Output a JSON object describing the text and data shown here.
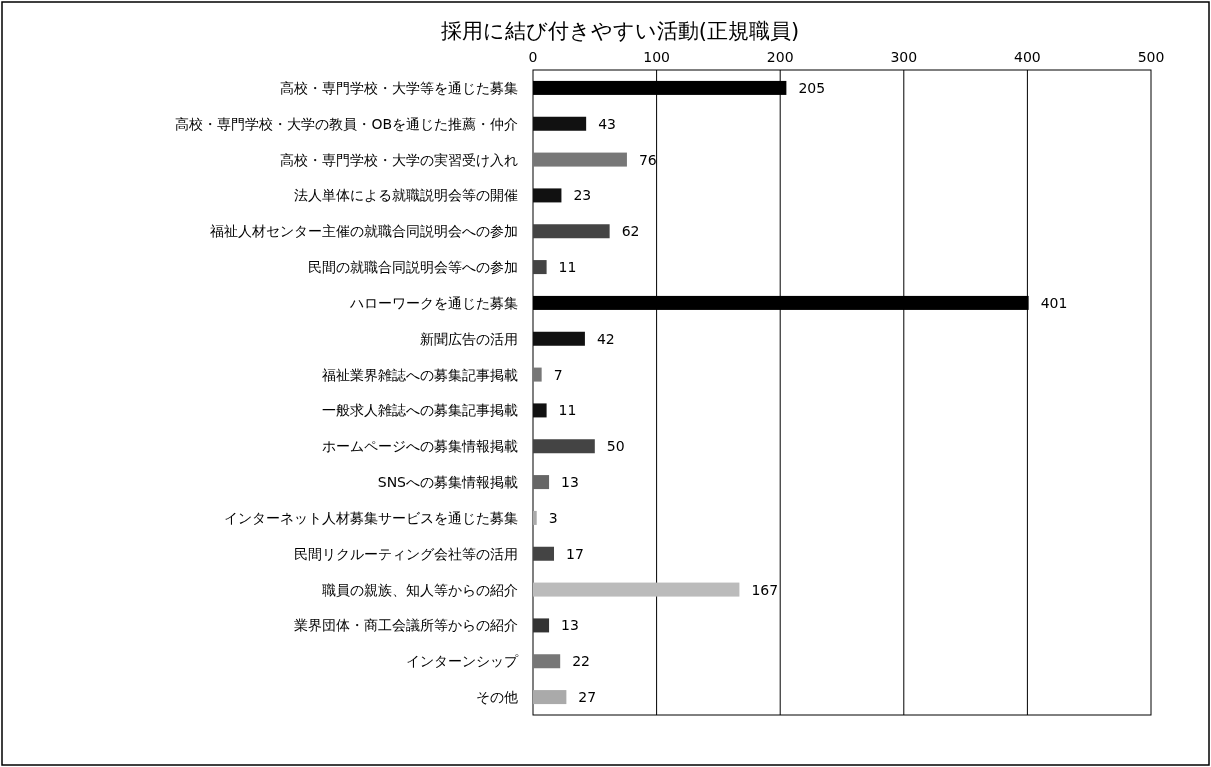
{
  "chart_data": {
    "type": "bar",
    "orientation": "horizontal",
    "title": "採用に結び付きやすい活動(正規職員)",
    "categories": [
      "高校・専門学校・大学等を通じた募集",
      "高校・専門学校・大学の教員・OBを通じた推薦・仲介",
      "高校・専門学校・大学の実習受け入れ",
      "法人単体による就職説明会等の開催",
      "福祉人材センター主催の就職合同説明会への参加",
      "民間の就職合同説明会等への参加",
      "ハローワークを通じた募集",
      "新聞広告の活用",
      "福祉業界雑誌への募集記事掲載",
      "一般求人雑誌への募集記事掲載",
      "ホームページへの募集情報掲載",
      "SNSへの募集情報掲載",
      "インターネット人材募集サービスを通じた募集",
      "民間リクルーティング会社等の活用",
      "職員の親族、知人等からの紹介",
      "業界団体・商工会議所等からの紹介",
      "インターンシップ",
      "その他"
    ],
    "values": [
      205,
      43,
      76,
      23,
      62,
      11,
      401,
      42,
      7,
      11,
      50,
      13,
      3,
      17,
      167,
      13,
      22,
      27
    ],
    "colors": [
      "#000000",
      "#111111",
      "#777777",
      "#111111",
      "#444444",
      "#444444",
      "#000000",
      "#111111",
      "#777777",
      "#111111",
      "#444444",
      "#666666",
      "#aaaaaa",
      "#444444",
      "#bbbbbb",
      "#333333",
      "#777777",
      "#aaaaaa"
    ],
    "xlim": [
      0,
      500
    ],
    "xticks": [
      0,
      100,
      200,
      300,
      400,
      500
    ],
    "grid": "x",
    "data_labels": true
  }
}
